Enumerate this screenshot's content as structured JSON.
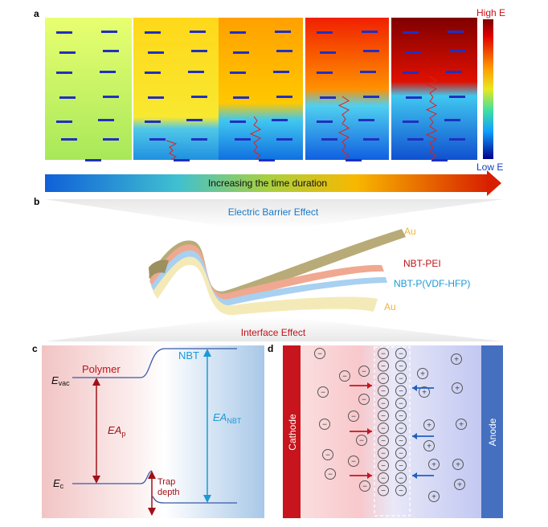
{
  "panel_a": {
    "letter": "a",
    "high_label": "High E",
    "low_label": "Low E",
    "arrow_label": "Increasing the time duration"
  },
  "panel_b": {
    "letter": "b",
    "top_label": "Electric Barrier Effect",
    "bottom_label": "Interface Effect",
    "layer_au_top": "Au",
    "layer_pei": "NBT-PEI",
    "layer_pvdf": "NBT-P(VDF-HFP)",
    "layer_au_bottom": "Au"
  },
  "panel_c": {
    "letter": "c",
    "polymer": "Polymer",
    "nbt": "NBT",
    "evac_main": "E",
    "evac_sub": "vac",
    "ec_main": "E",
    "ec_sub": "c",
    "eap_main": "EA",
    "eap_sub": "p",
    "eanbt_main": "EA",
    "eanbt_sub": "NBT",
    "trap1": "Trap",
    "trap2": "depth"
  },
  "panel_d": {
    "letter": "d",
    "cathode": "Cathode",
    "anode": "Anode",
    "minus": "−",
    "plus": "+"
  },
  "colors": {
    "polymer_red": "#c0121a",
    "nbt_blue": "#1a9ad8",
    "cathode": "#c8141c",
    "anode": "#4570c0",
    "au": "#f0b43c"
  }
}
